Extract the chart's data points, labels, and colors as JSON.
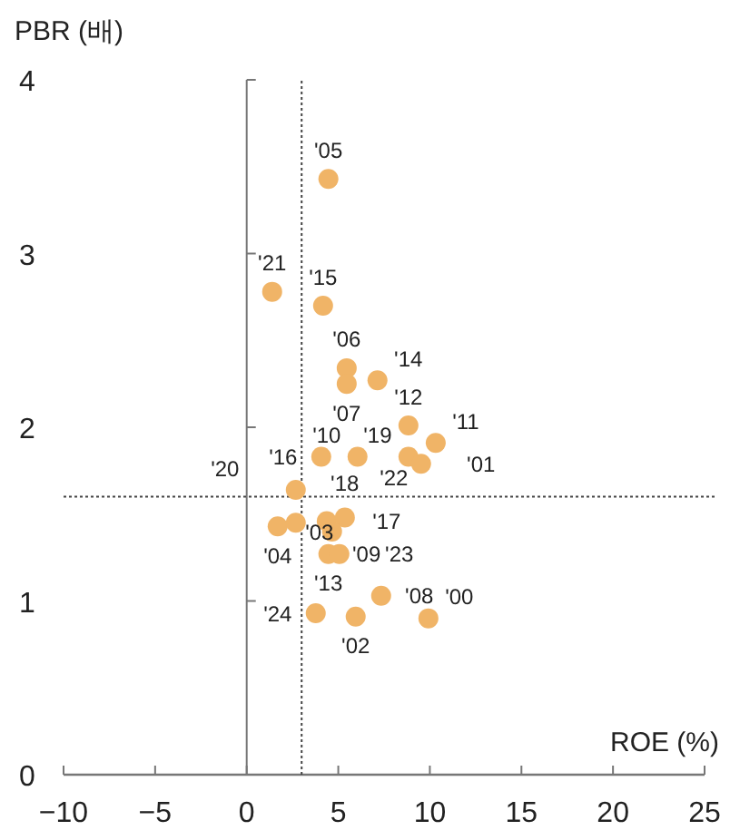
{
  "chart_data": {
    "type": "scatter",
    "xlabel": "ROE (%)",
    "ylabel": "PBR (배)",
    "xlim": [
      -10,
      25
    ],
    "ylim": [
      0,
      4
    ],
    "xticks": [
      -10,
      -5,
      0,
      5,
      10,
      15,
      20,
      25
    ],
    "yticks": [
      0,
      1,
      2,
      3,
      4
    ],
    "marker": "circle",
    "grid": false,
    "series": [
      {
        "color": "#f0b467",
        "x": [
          4.46,
          1.39,
          4.17,
          5.46,
          5.46,
          7.14,
          8.83,
          10.32,
          8.83,
          9.52,
          4.07,
          6.05,
          2.68,
          1.69,
          2.68,
          4.37,
          5.36,
          4.66,
          4.46,
          5.06,
          null,
          3.77,
          5.95,
          7.34,
          9.92
        ],
        "values": [
          3.43,
          2.78,
          2.7,
          2.34,
          2.25,
          2.27,
          2.01,
          1.91,
          1.83,
          1.79,
          1.83,
          1.83,
          1.64,
          1.43,
          1.45,
          1.46,
          1.48,
          1.4,
          1.27,
          1.27,
          null,
          0.93,
          0.91,
          1.03,
          0.9
        ]
      }
    ],
    "ref_lines": [
      {
        "axis": "x",
        "value": 0,
        "line_style": "solid",
        "color": "#777777"
      },
      {
        "axis": "x",
        "value": 3,
        "line_style": "dotted"
      },
      {
        "axis": "y",
        "value": 1.6,
        "line_style": "dotted"
      }
    ],
    "annotations": [
      {
        "text": "'05",
        "x": 4.46,
        "y": 3.43
      },
      {
        "text": "'21",
        "x": 1.39,
        "y": 2.78
      },
      {
        "text": "'15",
        "x": 4.17,
        "y": 2.7
      },
      {
        "text": "'06",
        "x": 5.46,
        "y": 2.34
      },
      {
        "text": "'07",
        "x": 5.46,
        "y": 2.25
      },
      {
        "text": "'14",
        "x": 7.14,
        "y": 2.27
      },
      {
        "text": "'12",
        "x": 8.83,
        "y": 2.01
      },
      {
        "text": "'11",
        "x": 10.32,
        "y": 1.91
      },
      {
        "text": "'19",
        "x": 8.83,
        "y": 1.83
      },
      {
        "text": "'01",
        "x": 9.52,
        "y": 1.79
      },
      {
        "text": "'16",
        "x": 4.07,
        "y": 1.83
      },
      {
        "text": "'10",
        "x": 6.05,
        "y": 1.83
      },
      {
        "text": "'20",
        "x": 2.68,
        "y": 1.64
      },
      {
        "text": "'04",
        "x": 1.69,
        "y": 1.43
      },
      {
        "text": "'18",
        "x": 2.68,
        "y": 1.45
      },
      {
        "text": "'17",
        "x": 4.37,
        "y": 1.46
      },
      {
        "text": "'22",
        "x": 5.36,
        "y": 1.48
      },
      {
        "text": "'09",
        "x": 4.66,
        "y": 1.4
      },
      {
        "text": "'13",
        "x": 4.46,
        "y": 1.27
      },
      {
        "text": "'23",
        "x": 5.06,
        "y": 1.27
      },
      {
        "text": "'03",
        "x": 3.97,
        "y": 1.23
      },
      {
        "text": "'24",
        "x": 3.77,
        "y": 0.93
      },
      {
        "text": "'02",
        "x": 5.95,
        "y": 0.91
      },
      {
        "text": "'08",
        "x": 7.34,
        "y": 1.03
      },
      {
        "text": "'00",
        "x": 9.92,
        "y": 0.9
      }
    ]
  }
}
